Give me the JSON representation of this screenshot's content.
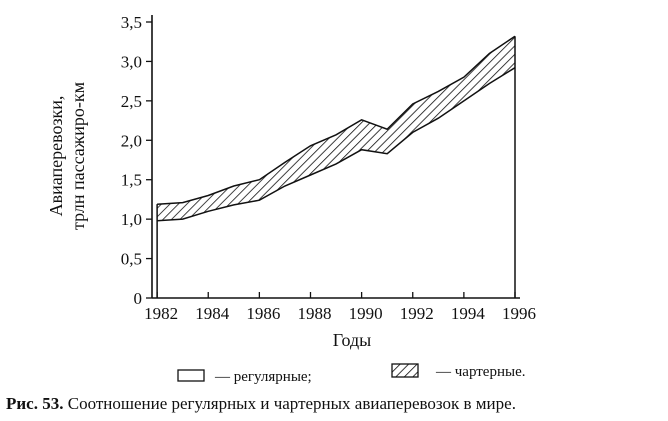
{
  "chart_data": {
    "type": "area",
    "x": [
      1982,
      1983,
      1984,
      1985,
      1986,
      1987,
      1988,
      1989,
      1990,
      1991,
      1992,
      1993,
      1994,
      1995,
      1996
    ],
    "x_tick_labels": [
      "1982",
      "1984",
      "1986",
      "1988",
      "1990",
      "1992",
      "1994",
      "1996"
    ],
    "x_tick_values": [
      1982,
      1984,
      1986,
      1988,
      1990,
      1992,
      1994,
      1996
    ],
    "y_tick_labels": [
      "0",
      "0,5",
      "1,0",
      "1,5",
      "2,0",
      "2,5",
      "3,0",
      "3,5"
    ],
    "y_tick_values": [
      0,
      0.5,
      1.0,
      1.5,
      2.0,
      2.5,
      3.0,
      3.5
    ],
    "xlim": [
      1981.8,
      1996
    ],
    "ylim": [
      0,
      3.5
    ],
    "series": [
      {
        "name": "регулярные",
        "pattern": "none",
        "values": [
          0.98,
          1.0,
          1.1,
          1.18,
          1.24,
          1.42,
          1.56,
          1.7,
          1.88,
          1.83,
          2.1,
          2.28,
          2.5,
          2.72,
          2.92
        ]
      },
      {
        "name": "чартерные",
        "pattern": "hatched",
        "total_values": [
          1.19,
          1.21,
          1.3,
          1.42,
          1.5,
          1.72,
          1.93,
          2.07,
          2.26,
          2.14,
          2.46,
          2.62,
          2.8,
          3.1,
          3.32
        ]
      }
    ],
    "xlabel": "Годы",
    "ylabel_line1": "Авиаперевозки,",
    "ylabel_line2": "трлн пассажиро-км",
    "legend": {
      "regular_label": "— регулярные;",
      "charter_label": "— чартерные."
    }
  },
  "caption": {
    "prefix": "Рис. 53.",
    "text": " Соотношение регулярных и чартерных авиаперевозок в мире."
  }
}
